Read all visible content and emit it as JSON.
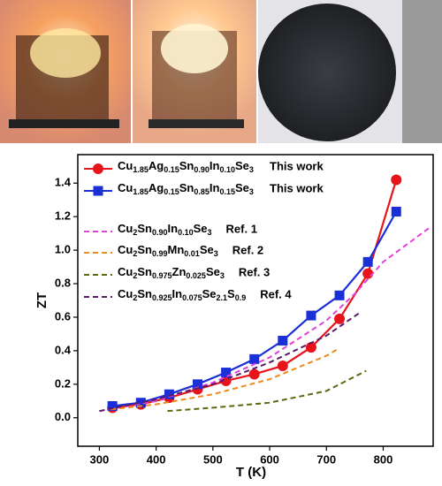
{
  "chart_data": {
    "type": "line",
    "x_label": "T (K)",
    "y_label": "ZT",
    "xlim": [
      262,
      888
    ],
    "ylim": [
      -0.17,
      1.57
    ],
    "xticks": [
      300,
      400,
      500,
      600,
      700,
      800
    ],
    "yticks": [
      {
        "value": 0,
        "label": "0.0"
      },
      0.2,
      0.4,
      0.6,
      0.8,
      {
        "value": 1,
        "label": "1.0"
      },
      1.2,
      1.4
    ],
    "series": [
      {
        "name": "Cu1.85Ag0.15Sn0.90In0.10Se3",
        "label": "This work",
        "color": "#e8141c",
        "marker": "circle",
        "dashed": false,
        "x": [
          323,
          373,
          423,
          473,
          523,
          573,
          623,
          673,
          723,
          773,
          823
        ],
        "values": [
          0.06,
          0.08,
          0.12,
          0.17,
          0.22,
          0.26,
          0.31,
          0.42,
          0.59,
          0.86,
          1.42
        ]
      },
      {
        "name": "Cu1.85Ag0.15Sn0.85In0.15Se3",
        "label": "This work",
        "color": "#1a2fd6",
        "marker": "square",
        "dashed": false,
        "x": [
          323,
          373,
          423,
          473,
          523,
          573,
          623,
          673,
          723,
          773,
          823
        ],
        "values": [
          0.07,
          0.09,
          0.14,
          0.2,
          0.27,
          0.35,
          0.46,
          0.61,
          0.73,
          0.93,
          1.23
        ]
      },
      {
        "name": "Cu2Sn0.90In0.10Se3",
        "label": "Ref. 1",
        "color": "#e040d8",
        "marker": "none",
        "dashed": true,
        "x": [
          300,
          400,
          500,
          600,
          700,
          750,
          800,
          880
        ],
        "values": [
          0.04,
          0.1,
          0.21,
          0.36,
          0.58,
          0.74,
          0.93,
          1.13
        ]
      },
      {
        "name": "Cu2Sn0.99Mn0.01Se3",
        "label": "Ref. 2",
        "color": "#f08a1c",
        "marker": "none",
        "dashed": true,
        "x": [
          320,
          400,
          500,
          600,
          700,
          720
        ],
        "values": [
          0.05,
          0.08,
          0.14,
          0.23,
          0.37,
          0.41
        ]
      },
      {
        "name": "Cu2Sn0.975Zn0.025Se3",
        "label": "Ref. 3",
        "color": "#5a6a10",
        "marker": "none",
        "dashed": true,
        "x": [
          420,
          500,
          600,
          700,
          770
        ],
        "values": [
          0.04,
          0.06,
          0.09,
          0.16,
          0.28
        ]
      },
      {
        "name": "Cu2Sn0.925In0.075Se2.1S0.9",
        "label": "Ref. 4",
        "color": "#5a1a6a",
        "marker": "none",
        "dashed": true,
        "x": [
          300,
          400,
          500,
          600,
          700,
          760
        ],
        "values": [
          0.04,
          0.11,
          0.2,
          0.33,
          0.49,
          0.63
        ]
      }
    ]
  }
}
